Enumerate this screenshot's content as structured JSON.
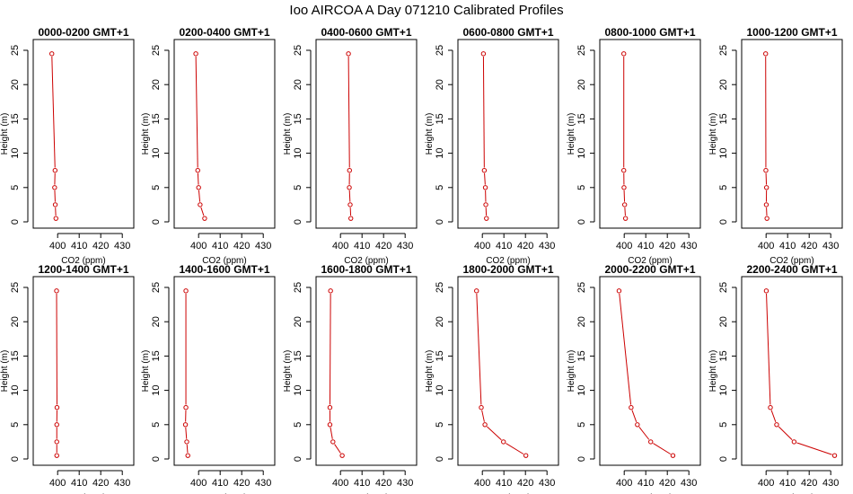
{
  "title": "Ioo AIRCOA A  Day 071210  Calibrated Profiles",
  "colors": {
    "profile": "#cc0000",
    "axis": "#000000"
  },
  "chart_data": [
    {
      "type": "line",
      "title": "0000-0200 GMT+1",
      "xlabel": "CO2 (ppm)",
      "ylabel": "Height (m)",
      "xlim": [
        392,
        432
      ],
      "ylim": [
        0,
        25
      ],
      "xticks": [
        400,
        410,
        420,
        430
      ],
      "yticks": [
        0,
        5,
        10,
        15,
        20,
        25
      ],
      "series": [
        {
          "x": [
            399.2,
            398.9,
            398.6,
            398.8,
            397.3
          ],
          "y": [
            0.5,
            2.5,
            5,
            7.5,
            24.5
          ]
        }
      ]
    },
    {
      "type": "line",
      "title": "0200-0400 GMT+1",
      "xlabel": "CO2 (ppm)",
      "ylabel": "Height (m)",
      "xlim": [
        392,
        432
      ],
      "ylim": [
        0,
        25
      ],
      "xticks": [
        400,
        410,
        420,
        430
      ],
      "yticks": [
        0,
        5,
        10,
        15,
        20,
        25
      ],
      "series": [
        {
          "x": [
            402.8,
            400.7,
            400.0,
            399.6,
            398.7
          ],
          "y": [
            0.5,
            2.5,
            5,
            7.5,
            24.5
          ]
        }
      ]
    },
    {
      "type": "line",
      "title": "0400-0600 GMT+1",
      "xlabel": "CO2 (ppm)",
      "ylabel": "Height (m)",
      "xlim": [
        392,
        432
      ],
      "ylim": [
        0,
        25
      ],
      "xticks": [
        400,
        410,
        420,
        430
      ],
      "yticks": [
        0,
        5,
        10,
        15,
        20,
        25
      ],
      "series": [
        {
          "x": [
            404.8,
            404.5,
            404.1,
            404.2,
            403.7
          ],
          "y": [
            0.5,
            2.5,
            5,
            7.5,
            24.5
          ]
        }
      ]
    },
    {
      "type": "line",
      "title": "0600-0800 GMT+1",
      "xlabel": "CO2 (ppm)",
      "ylabel": "Height (m)",
      "xlim": [
        392,
        432
      ],
      "ylim": [
        0,
        25
      ],
      "xticks": [
        400,
        410,
        420,
        430
      ],
      "yticks": [
        0,
        5,
        10,
        15,
        20,
        25
      ],
      "series": [
        {
          "x": [
            401.9,
            401.6,
            401.4,
            400.9,
            400.5
          ],
          "y": [
            0.5,
            2.5,
            5,
            7.5,
            24.5
          ]
        }
      ]
    },
    {
      "type": "line",
      "title": "0800-1000 GMT+1",
      "xlabel": "CO2 (ppm)",
      "ylabel": "Height (m)",
      "xlim": [
        392,
        432
      ],
      "ylim": [
        0,
        25
      ],
      "xticks": [
        400,
        410,
        420,
        430
      ],
      "yticks": [
        0,
        5,
        10,
        15,
        20,
        25
      ],
      "series": [
        {
          "x": [
            400.6,
            400.2,
            399.9,
            399.8,
            399.8
          ],
          "y": [
            0.5,
            2.5,
            5,
            7.5,
            24.5
          ]
        }
      ]
    },
    {
      "type": "line",
      "title": "1000-1200 GMT+1",
      "xlabel": "CO2 (ppm)",
      "ylabel": "Height (m)",
      "xlim": [
        392,
        432
      ],
      "ylim": [
        0,
        25
      ],
      "xticks": [
        400,
        410,
        420,
        430
      ],
      "yticks": [
        0,
        5,
        10,
        15,
        20,
        25
      ],
      "series": [
        {
          "x": [
            400.4,
            400.1,
            400.2,
            399.9,
            399.8
          ],
          "y": [
            0.5,
            2.5,
            5,
            7.5,
            24.5
          ]
        }
      ]
    },
    {
      "type": "line",
      "title": "1200-1400 GMT+1",
      "xlabel": "CO2 (ppm)",
      "ylabel": "Height (m)",
      "xlim": [
        392,
        432
      ],
      "ylim": [
        0,
        25
      ],
      "xticks": [
        400,
        410,
        420,
        430
      ],
      "yticks": [
        0,
        5,
        10,
        15,
        20,
        25
      ],
      "series": [
        {
          "x": [
            399.6,
            399.6,
            399.6,
            399.7,
            399.5
          ],
          "y": [
            0.5,
            2.5,
            5,
            7.5,
            24.5
          ]
        }
      ]
    },
    {
      "type": "line",
      "title": "1400-1600 GMT+1",
      "xlabel": "CO2 (ppm)",
      "ylabel": "Height (m)",
      "xlim": [
        392,
        432
      ],
      "ylim": [
        0,
        25
      ],
      "xticks": [
        400,
        410,
        420,
        430
      ],
      "yticks": [
        0,
        5,
        10,
        15,
        20,
        25
      ],
      "series": [
        {
          "x": [
            395.0,
            394.5,
            393.9,
            394.1,
            394.1
          ],
          "y": [
            0.5,
            2.5,
            5,
            7.5,
            24.5
          ]
        }
      ]
    },
    {
      "type": "line",
      "title": "1600-1800 GMT+1",
      "xlabel": "CO2 (ppm)",
      "ylabel": "Height (m)",
      "xlim": [
        392,
        432
      ],
      "ylim": [
        0,
        25
      ],
      "xticks": [
        400,
        410,
        420,
        430
      ],
      "yticks": [
        0,
        5,
        10,
        15,
        20,
        25
      ],
      "series": [
        {
          "x": [
            400.8,
            396.5,
            395.1,
            395.1,
            395.4
          ],
          "y": [
            0.5,
            2.5,
            5,
            7.5,
            24.5
          ]
        }
      ]
    },
    {
      "type": "line",
      "title": "1800-2000 GMT+1",
      "xlabel": "CO2 (ppm)",
      "ylabel": "Height (m)",
      "xlim": [
        392,
        432
      ],
      "ylim": [
        0,
        25
      ],
      "xticks": [
        400,
        410,
        420,
        430
      ],
      "yticks": [
        0,
        5,
        10,
        15,
        20,
        25
      ],
      "series": [
        {
          "x": [
            420.2,
            409.8,
            401.2,
            399.5,
            397.3
          ],
          "y": [
            0.5,
            2.5,
            5,
            7.5,
            24.5
          ]
        }
      ]
    },
    {
      "type": "line",
      "title": "2000-2200 GMT+1",
      "xlabel": "CO2 (ppm)",
      "ylabel": "Height (m)",
      "xlim": [
        392,
        432
      ],
      "ylim": [
        0,
        25
      ],
      "xticks": [
        400,
        410,
        420,
        430
      ],
      "yticks": [
        0,
        5,
        10,
        15,
        20,
        25
      ],
      "series": [
        {
          "x": [
            422.6,
            412.3,
            406.1,
            403.2,
            397.6
          ],
          "y": [
            0.5,
            2.5,
            5,
            7.5,
            24.5
          ]
        }
      ]
    },
    {
      "type": "line",
      "title": "2200-2400 GMT+1",
      "xlabel": "CO2 (ppm)",
      "ylabel": "Height (m)",
      "xlim": [
        392,
        432
      ],
      "ylim": [
        0,
        25
      ],
      "xticks": [
        400,
        410,
        420,
        430
      ],
      "yticks": [
        0,
        5,
        10,
        15,
        20,
        25
      ],
      "series": [
        {
          "x": [
            431.8,
            413.0,
            404.9,
            402.0,
            400.1
          ],
          "y": [
            0.5,
            2.5,
            5,
            7.5,
            24.5
          ]
        }
      ]
    }
  ]
}
